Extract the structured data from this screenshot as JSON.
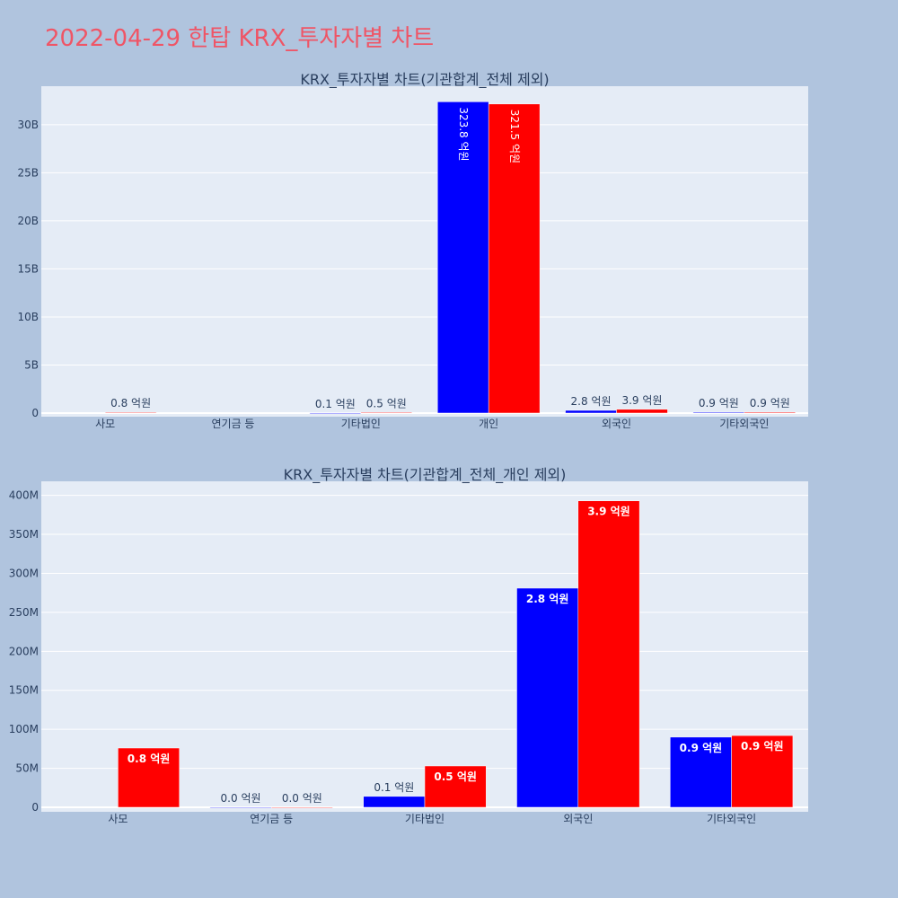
{
  "page_title": "2022-04-29 한탑 KRX_투자자별 차트",
  "colors": {
    "page_bg": "#b0c4de",
    "plot_bg": "#e5ecf6",
    "title": "#ef5566",
    "series_buy": "#0000ff",
    "series_sell": "#ff0000",
    "text": "#2a3f5f"
  },
  "chart_data": [
    {
      "type": "bar",
      "title": "KRX_투자자별 차트(기관합계_전체 제외)",
      "categories": [
        "사모",
        "연기금 등",
        "기타법인",
        "개인",
        "외국인",
        "기타외국인"
      ],
      "series": [
        {
          "values": [
            null,
            null,
            10000000,
            32380000000,
            280000000,
            90000000
          ],
          "labels": [
            "",
            "",
            "0.1 억원",
            "323.8 억원",
            "2.8 억원",
            "0.9 억원"
          ]
        },
        {
          "values": [
            76000000,
            null,
            52000000,
            32150000000,
            390000000,
            91000000
          ],
          "labels": [
            "0.8 억원",
            "",
            "0.5 억원",
            "321.5 억원",
            "3.9 억원",
            "0.9 억원"
          ]
        }
      ],
      "ylim": [
        0,
        34000000000
      ],
      "yticks": [
        0,
        5000000000,
        10000000000,
        15000000000,
        20000000000,
        25000000000,
        30000000000
      ],
      "ytick_labels": [
        "0",
        "5B",
        "10B",
        "15B",
        "20B",
        "25B",
        "30B"
      ],
      "xlabel": "",
      "ylabel": "",
      "grid": true
    },
    {
      "type": "bar",
      "title": "KRX_투자자별 차트(기관합계_전체_개인 제외)",
      "categories": [
        "사모",
        "연기금 등",
        "기타법인",
        "외국인",
        "기타외국인"
      ],
      "series": [
        {
          "values": [
            null,
            0,
            14000000,
            281000000,
            90000000
          ],
          "labels": [
            "",
            "0.0 억원",
            "0.1 억원",
            "2.8 억원",
            "0.9 억원"
          ]
        },
        {
          "values": [
            76000000,
            0,
            53000000,
            393000000,
            92000000
          ],
          "labels": [
            "0.8 억원",
            "0.0 억원",
            "0.5 억원",
            "3.9 억원",
            "0.9 억원"
          ]
        }
      ],
      "ylim": [
        0,
        418000000
      ],
      "yticks": [
        0,
        50000000,
        100000000,
        150000000,
        200000000,
        250000000,
        300000000,
        350000000,
        400000000
      ],
      "ytick_labels": [
        "0",
        "50M",
        "100M",
        "150M",
        "200M",
        "250M",
        "300M",
        "350M",
        "400M"
      ],
      "xlabel": "",
      "ylabel": "",
      "grid": true
    }
  ]
}
